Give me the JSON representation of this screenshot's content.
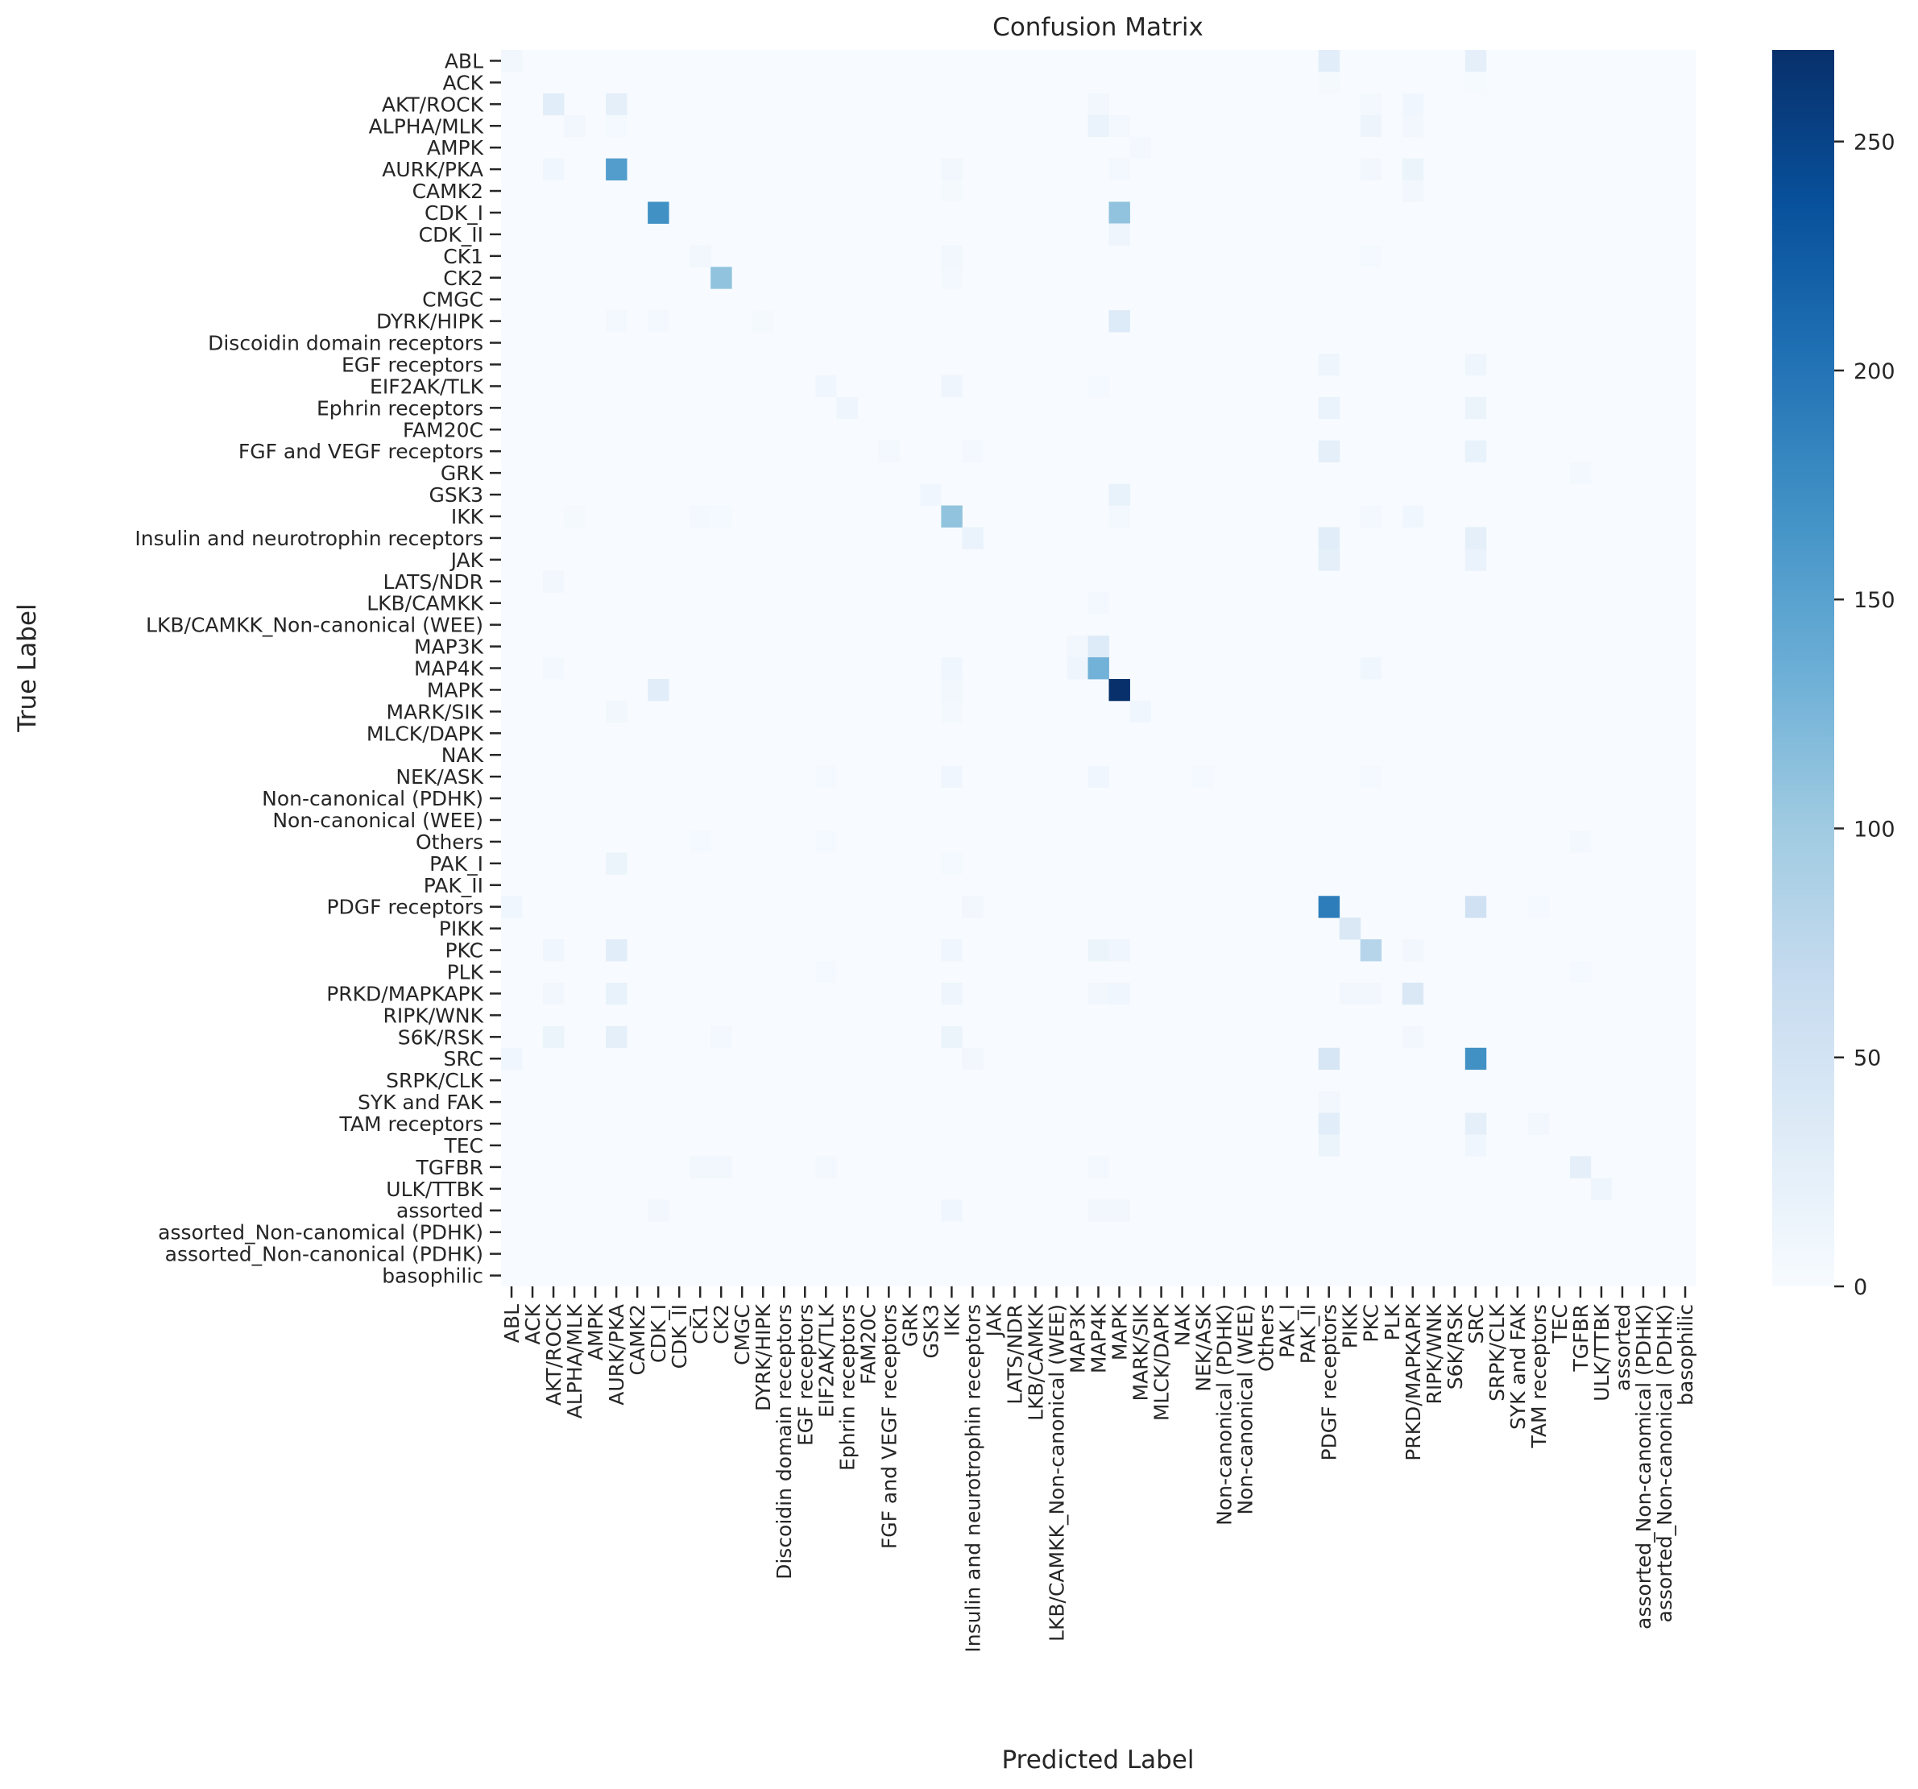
{
  "chart_data": {
    "type": "heatmap",
    "title": "Confusion Matrix",
    "xlabel": "Predicted Label",
    "ylabel": "True Label",
    "labels": [
      "ABL",
      "ACK",
      "AKT/ROCK",
      "ALPHA/MLK",
      "AMPK",
      "AURK/PKA",
      "CAMK2",
      "CDK_I",
      "CDK_II",
      "CK1",
      "CK2",
      "CMGC",
      "DYRK/HIPK",
      "Discoidin domain receptors",
      "EGF receptors",
      "EIF2AK/TLK",
      "Ephrin receptors",
      "FAM20C",
      "FGF and VEGF receptors",
      "GRK",
      "GSK3",
      "IKK",
      "Insulin and neurotrophin receptors",
      "JAK",
      "LATS/NDR",
      "LKB/CAMKK",
      "LKB/CAMKK_Non-canonical (WEE)",
      "MAP3K",
      "MAP4K",
      "MAPK",
      "MARK/SIK",
      "MLCK/DAPK",
      "NAK",
      "NEK/ASK",
      "Non-canonical (PDHK)",
      "Non-canonical (WEE)",
      "Others",
      "PAK_I",
      "PAK_II",
      "PDGF receptors",
      "PIKK",
      "PKC",
      "PLK",
      "PRKD/MAPKAPK",
      "RIPK/WNK",
      "S6K/RSK",
      "SRC",
      "SRPK/CLK",
      "SYK and FAK",
      "TAM receptors",
      "TEC",
      "TGFBR",
      "ULK/TTBK",
      "assorted",
      "assorted_Non-canomical (PDHK)",
      "assorted_Non-canonical (PDHK)",
      "basophilic"
    ],
    "colorbar": {
      "min": 0,
      "max": 270,
      "ticks": [
        0,
        50,
        100,
        150,
        200,
        250
      ],
      "colormap": "Blues"
    },
    "cells": [
      [
        0,
        0,
        8
      ],
      [
        0,
        39,
        30
      ],
      [
        0,
        46,
        25
      ],
      [
        1,
        39,
        4
      ],
      [
        1,
        46,
        3
      ],
      [
        2,
        2,
        30
      ],
      [
        2,
        5,
        25
      ],
      [
        2,
        28,
        8
      ],
      [
        2,
        41,
        6
      ],
      [
        2,
        43,
        10
      ],
      [
        3,
        3,
        8
      ],
      [
        3,
        5,
        5
      ],
      [
        3,
        28,
        18
      ],
      [
        3,
        29,
        6
      ],
      [
        3,
        41,
        14
      ],
      [
        3,
        43,
        8
      ],
      [
        4,
        30,
        6
      ],
      [
        5,
        2,
        10
      ],
      [
        5,
        5,
        155
      ],
      [
        5,
        21,
        8
      ],
      [
        5,
        29,
        6
      ],
      [
        5,
        41,
        8
      ],
      [
        5,
        43,
        15
      ],
      [
        6,
        21,
        4
      ],
      [
        6,
        43,
        8
      ],
      [
        7,
        7,
        170
      ],
      [
        7,
        29,
        110
      ],
      [
        8,
        29,
        12
      ],
      [
        9,
        9,
        8
      ],
      [
        9,
        21,
        8
      ],
      [
        9,
        41,
        5
      ],
      [
        10,
        10,
        110
      ],
      [
        10,
        21,
        6
      ],
      [
        12,
        5,
        6
      ],
      [
        12,
        7,
        6
      ],
      [
        12,
        12,
        4
      ],
      [
        12,
        29,
        35
      ],
      [
        14,
        39,
        12
      ],
      [
        14,
        46,
        12
      ],
      [
        15,
        15,
        10
      ],
      [
        15,
        21,
        12
      ],
      [
        15,
        28,
        5
      ],
      [
        16,
        16,
        12
      ],
      [
        16,
        39,
        18
      ],
      [
        16,
        46,
        15
      ],
      [
        18,
        18,
        6
      ],
      [
        18,
        22,
        6
      ],
      [
        18,
        39,
        25
      ],
      [
        18,
        46,
        20
      ],
      [
        19,
        51,
        6
      ],
      [
        20,
        20,
        10
      ],
      [
        20,
        29,
        20
      ],
      [
        21,
        3,
        4
      ],
      [
        21,
        9,
        6
      ],
      [
        21,
        10,
        5
      ],
      [
        21,
        21,
        110
      ],
      [
        21,
        29,
        6
      ],
      [
        21,
        41,
        6
      ],
      [
        21,
        43,
        10
      ],
      [
        22,
        22,
        18
      ],
      [
        22,
        39,
        30
      ],
      [
        22,
        46,
        25
      ],
      [
        23,
        39,
        25
      ],
      [
        23,
        46,
        18
      ],
      [
        24,
        2,
        8
      ],
      [
        25,
        28,
        6
      ],
      [
        27,
        27,
        8
      ],
      [
        27,
        28,
        35
      ],
      [
        28,
        2,
        6
      ],
      [
        28,
        21,
        10
      ],
      [
        28,
        27,
        12
      ],
      [
        28,
        28,
        130
      ],
      [
        28,
        41,
        10
      ],
      [
        29,
        7,
        30
      ],
      [
        29,
        21,
        8
      ],
      [
        29,
        29,
        270
      ],
      [
        30,
        5,
        8
      ],
      [
        30,
        21,
        6
      ],
      [
        30,
        30,
        10
      ],
      [
        33,
        15,
        5
      ],
      [
        33,
        21,
        10
      ],
      [
        33,
        28,
        10
      ],
      [
        33,
        33,
        5
      ],
      [
        33,
        41,
        5
      ],
      [
        36,
        9,
        5
      ],
      [
        36,
        15,
        5
      ],
      [
        36,
        51,
        6
      ],
      [
        37,
        5,
        15
      ],
      [
        37,
        21,
        5
      ],
      [
        39,
        0,
        10
      ],
      [
        39,
        22,
        8
      ],
      [
        39,
        39,
        190
      ],
      [
        39,
        46,
        55
      ],
      [
        39,
        49,
        5
      ],
      [
        40,
        40,
        40
      ],
      [
        41,
        2,
        10
      ],
      [
        41,
        5,
        30
      ],
      [
        41,
        21,
        10
      ],
      [
        41,
        28,
        15
      ],
      [
        41,
        29,
        10
      ],
      [
        41,
        41,
        80
      ],
      [
        41,
        43,
        8
      ],
      [
        42,
        15,
        5
      ],
      [
        42,
        51,
        5
      ],
      [
        43,
        2,
        8
      ],
      [
        43,
        5,
        20
      ],
      [
        43,
        21,
        12
      ],
      [
        43,
        28,
        8
      ],
      [
        43,
        29,
        10
      ],
      [
        43,
        40,
        8
      ],
      [
        43,
        41,
        8
      ],
      [
        43,
        43,
        40
      ],
      [
        45,
        2,
        15
      ],
      [
        45,
        5,
        25
      ],
      [
        45,
        10,
        6
      ],
      [
        45,
        21,
        15
      ],
      [
        45,
        43,
        8
      ],
      [
        46,
        0,
        10
      ],
      [
        46,
        22,
        8
      ],
      [
        46,
        39,
        45
      ],
      [
        46,
        46,
        170
      ],
      [
        48,
        39,
        8
      ],
      [
        49,
        39,
        30
      ],
      [
        49,
        46,
        25
      ],
      [
        49,
        49,
        8
      ],
      [
        50,
        39,
        15
      ],
      [
        50,
        46,
        10
      ],
      [
        51,
        9,
        8
      ],
      [
        51,
        10,
        8
      ],
      [
        51,
        15,
        6
      ],
      [
        51,
        28,
        6
      ],
      [
        51,
        51,
        25
      ],
      [
        52,
        52,
        12
      ],
      [
        53,
        7,
        8
      ],
      [
        53,
        21,
        10
      ],
      [
        53,
        28,
        8
      ],
      [
        53,
        29,
        8
      ]
    ]
  }
}
